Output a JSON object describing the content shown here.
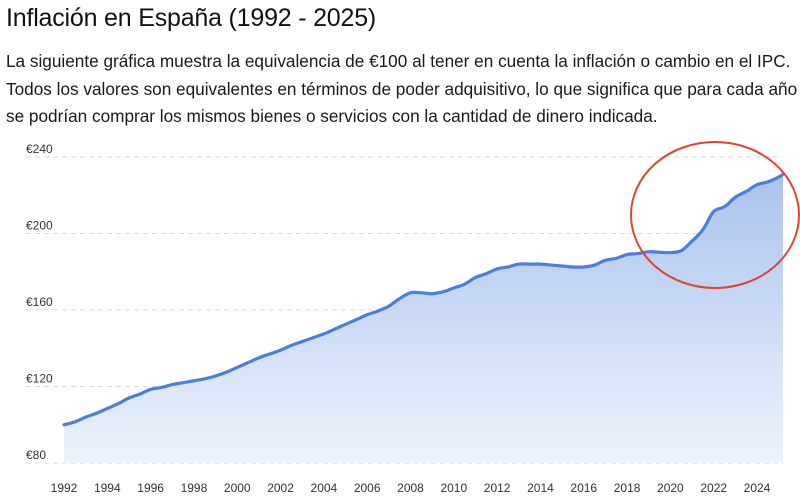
{
  "header": {
    "title": "Inflación en España (1992 - 2025)",
    "description": "La siguiente gráfica muestra la equivalencia de €100 al tener en cuenta la inflación o cambio en el IPC. Todos los valores son equivalentes en términos de poder adquisitivo, lo que significa que para cada año se podrían comprar los mismos bienes o servicios con la cantidad de dinero indicada."
  },
  "chart_data": {
    "type": "area",
    "title": "",
    "xlabel": "",
    "ylabel": "",
    "x": [
      1992,
      1992.5,
      1993,
      1993.5,
      1994,
      1994.5,
      1995,
      1995.5,
      1996,
      1996.5,
      1997,
      1997.5,
      1998,
      1998.5,
      1999,
      1999.5,
      2000,
      2000.5,
      2001,
      2001.5,
      2002,
      2002.5,
      2003,
      2003.5,
      2004,
      2004.5,
      2005,
      2005.5,
      2006,
      2006.5,
      2007,
      2007.5,
      2008,
      2008.5,
      2009,
      2009.5,
      2010,
      2010.5,
      2011,
      2011.5,
      2012,
      2012.5,
      2013,
      2013.5,
      2014,
      2014.5,
      2015,
      2015.5,
      2016,
      2016.5,
      2017,
      2017.5,
      2018,
      2018.5,
      2019,
      2019.5,
      2020,
      2020.5,
      2021,
      2021.5,
      2022,
      2022.5,
      2023,
      2023.5,
      2024,
      2024.5,
      2025,
      2025.2
    ],
    "series": [
      {
        "values": [
          100,
          101.5,
          104,
          106,
          108.5,
          111,
          114,
          116,
          118.5,
          119.5,
          121,
          122,
          123,
          124,
          125.5,
          127.5,
          130,
          132.5,
          135,
          137,
          139,
          141.5,
          143.5,
          145.5,
          147.5,
          150,
          152.5,
          155,
          157.5,
          159.5,
          162,
          166,
          169,
          169,
          168.5,
          169.5,
          171.5,
          173.5,
          177,
          179,
          181.5,
          182.5,
          184,
          184,
          184,
          183.5,
          183,
          182.5,
          182.5,
          183.5,
          186,
          187,
          189,
          189.5,
          190.5,
          190.2,
          190,
          191,
          196,
          202,
          211.5,
          214,
          219,
          222,
          225.5,
          227,
          229.5,
          231
        ]
      }
    ],
    "yticks": [
      "€80",
      "€120",
      "€160",
      "€200",
      "€240"
    ],
    "xticks": [
      "1992",
      "1994",
      "1996",
      "1998",
      "2000",
      "2002",
      "2004",
      "2006",
      "2008",
      "2010",
      "2012",
      "2014",
      "2016",
      "2018",
      "2020",
      "2022",
      "2024"
    ],
    "ylim": [
      80,
      240
    ],
    "xlim": [
      1992,
      2025.2
    ],
    "grid": true,
    "annotation": "red ellipse highlighting 2020-2025 rise",
    "colors": {
      "line": "#4a7fdb",
      "fill_top": "#a9c3ee",
      "fill_bottom": "#eef3fc",
      "grid": "#d9d9d9",
      "annotation": "#e04430"
    }
  }
}
